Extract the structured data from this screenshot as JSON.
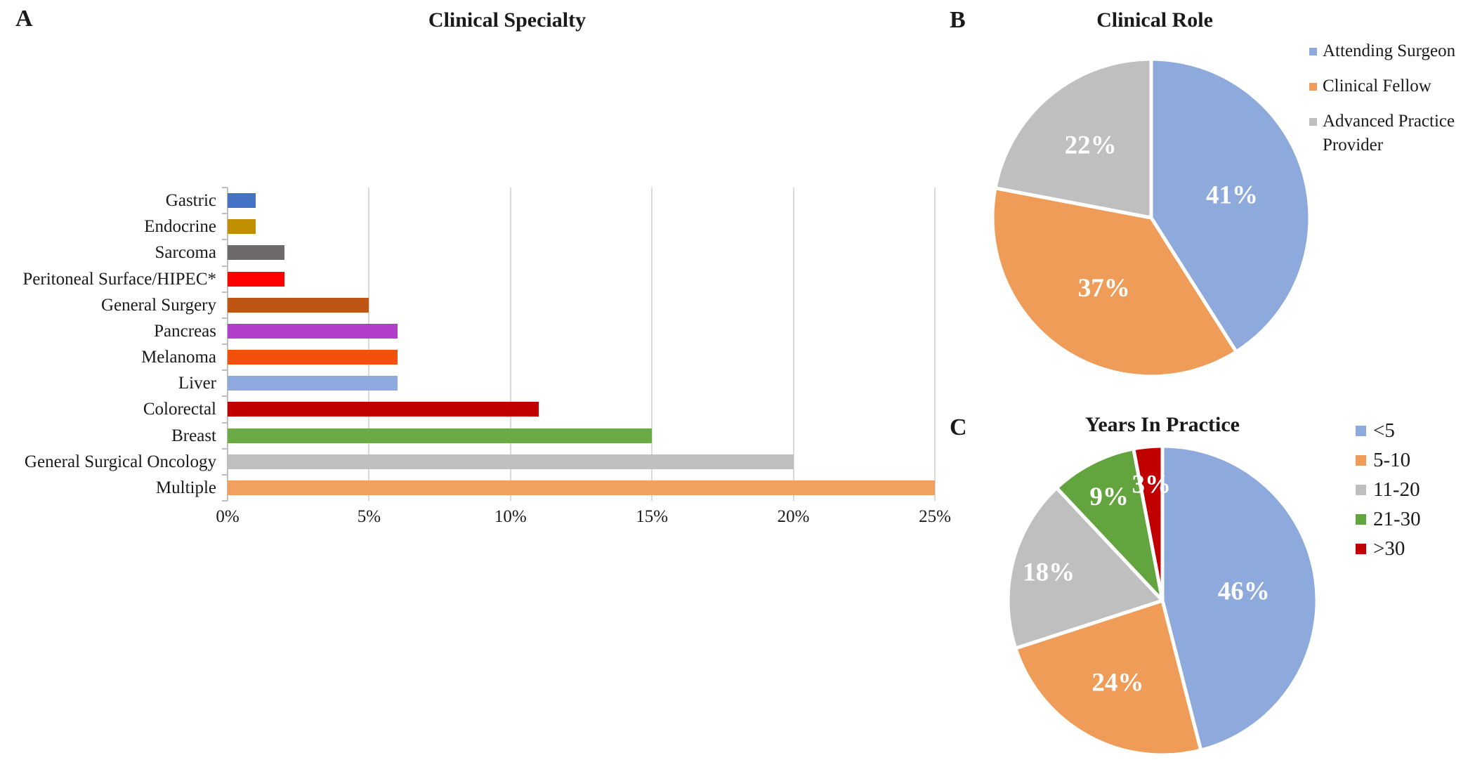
{
  "panels": {
    "a": {
      "letter": "A",
      "title": "Clinical Specialty"
    },
    "b": {
      "letter": "B",
      "title": "Clinical Role"
    },
    "c": {
      "letter": "C",
      "title": "Years In Practice"
    }
  },
  "colors": {
    "axis": "#BFBFBF",
    "gridline": "#D9D9D9",
    "text": "#1A1A1A",
    "pie_border": "#FFFFFF"
  },
  "chart_data": [
    {
      "type": "bar",
      "panel": "A",
      "title": "Clinical Specialty",
      "orientation": "horizontal",
      "categories": [
        "Gastric",
        "Endocrine",
        "Sarcoma",
        "Peritoneal Surface/HIPEC*",
        "General Surgery",
        "Pancreas",
        "Melanoma",
        "Liver",
        "Colorectal",
        "Breast",
        "General Surgical Oncology",
        "Multiple"
      ],
      "values": [
        1,
        1,
        2,
        2,
        5,
        6,
        6,
        6,
        11,
        15,
        20,
        25
      ],
      "unit": "%",
      "xlim": [
        0,
        25
      ],
      "xticks": [
        "0%",
        "5%",
        "10%",
        "15%",
        "20%",
        "25%"
      ],
      "bar_colors": [
        "#4472C4",
        "#BF8F00",
        "#6E6A69",
        "#FF0000",
        "#BE5514",
        "#B23ECC",
        "#F2500B",
        "#8FAADC",
        "#C00000",
        "#6AAB45",
        "#BFBFBF",
        "#F0A05F"
      ],
      "grid": true,
      "legend": "none"
    },
    {
      "type": "pie",
      "panel": "B",
      "title": "Clinical Role",
      "labels": [
        "Attending Surgeon",
        "Clinical Fellow",
        "Advanced Practice Provider"
      ],
      "values": [
        41,
        37,
        22
      ],
      "slice_labels": [
        "41%",
        "37%",
        "22%"
      ],
      "colors": [
        "#8EA9DB",
        "#EE9C58",
        "#BFBFBF"
      ],
      "start_angle_deg": 0,
      "direction": "clockwise",
      "legend_position": "right"
    },
    {
      "type": "pie",
      "panel": "C",
      "title": "Years In Practice",
      "labels": [
        "<5",
        "5-10",
        "11-20",
        "21-30",
        ">30"
      ],
      "values": [
        46,
        24,
        18,
        9,
        3
      ],
      "slice_labels": [
        "46%",
        "24%",
        "18%",
        "9%",
        "3%"
      ],
      "colors": [
        "#8EA9DB",
        "#EE9C58",
        "#BFBFBF",
        "#62A53E",
        "#C00000"
      ],
      "start_angle_deg": 0,
      "direction": "clockwise",
      "legend_position": "right"
    }
  ]
}
